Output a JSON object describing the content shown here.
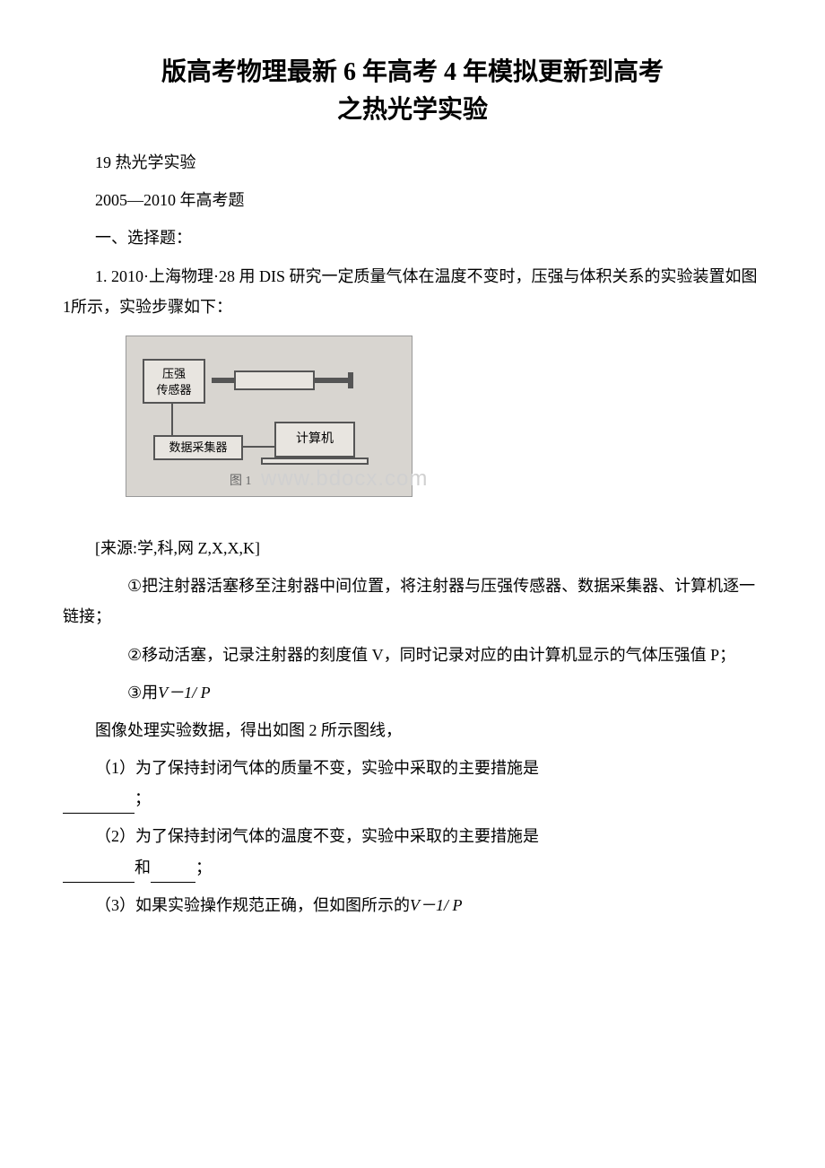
{
  "title": {
    "line1": "版高考物理最新 6 年高考 4 年模拟更新到高考",
    "line2": "之热光学实验"
  },
  "paragraphs": {
    "p1": "19 热光学实验",
    "p2": "2005—2010 年高考题",
    "p3": "一、选择题：",
    "p4": "1. 2010·上海物理·28 用 DIS 研究一定质量气体在温度不变时，压强与体积关系的实验装置如图1所示，实验步骤如下：",
    "source": "[来源:学,科,网 Z,X,X,K]",
    "step1_circle": "①",
    "step1": "把注射器活塞移至注射器中间位置，将注射器与压强传感器、数据采集器、计算机逐一链接；",
    "step2_circle": "②",
    "step2": "移动活塞，记录注射器的刻度值 V，同时记录对应的由计算机显示的气体压强值 P；",
    "step3_circle": "③",
    "step3_prefix": "用",
    "step3_formula": "V－1/ P",
    "p_imgproc": "图像处理实验数据，得出如图 2 所示图线，",
    "q1_prefix": "（1）为了保持封闭气体的质量不变，实验中采取的主要措施是",
    "q1_suffix": "；",
    "q2_prefix": "（2）为了保持封闭气体的温度不变，实验中采取的主要措施是",
    "q2_mid": "和",
    "q2_suffix": "；",
    "q3_prefix": "（3）如果实验操作规范正确，但如图所示的",
    "q3_formula": "V－1/ P"
  },
  "figure": {
    "sensor_label": "压强\n传感器",
    "collector_label": "数据采集器",
    "computer_label": "计算机",
    "caption": "图 1",
    "watermark": "www.bdocx.com"
  },
  "styles": {
    "body_width": 920,
    "body_height": 1302,
    "background_color": "#ffffff",
    "text_color": "#000000",
    "title_fontsize": 28,
    "body_fontsize": 18,
    "figure_bg": "#d8d5d0",
    "box_border": "#555555",
    "box_bg": "#e8e5e0",
    "watermark_color": "#d0d0d0"
  }
}
